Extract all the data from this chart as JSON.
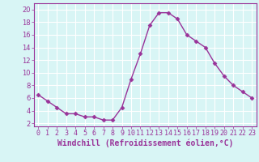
{
  "x": [
    0,
    1,
    2,
    3,
    4,
    5,
    6,
    7,
    8,
    9,
    10,
    11,
    12,
    13,
    14,
    15,
    16,
    17,
    18,
    19,
    20,
    21,
    22,
    23
  ],
  "y": [
    6.5,
    5.5,
    4.5,
    3.5,
    3.5,
    3.0,
    3.0,
    2.5,
    2.5,
    4.5,
    9.0,
    13.0,
    17.5,
    19.5,
    19.5,
    18.5,
    16.0,
    15.0,
    14.0,
    11.5,
    9.5,
    8.0,
    7.0,
    6.0
  ],
  "line_color": "#993399",
  "marker": "D",
  "marker_size": 2.5,
  "xlabel": "Windchill (Refroidissement éolien,°C)",
  "xlabel_fontsize": 7,
  "ylabel_ticks": [
    2,
    4,
    6,
    8,
    10,
    12,
    14,
    16,
    18,
    20
  ],
  "xlim": [
    -0.5,
    23.5
  ],
  "ylim": [
    1.5,
    21.0
  ],
  "background_color": "#d8f5f5",
  "grid_color": "#b8e8e8",
  "tick_fontsize": 6,
  "line_width": 1.0
}
